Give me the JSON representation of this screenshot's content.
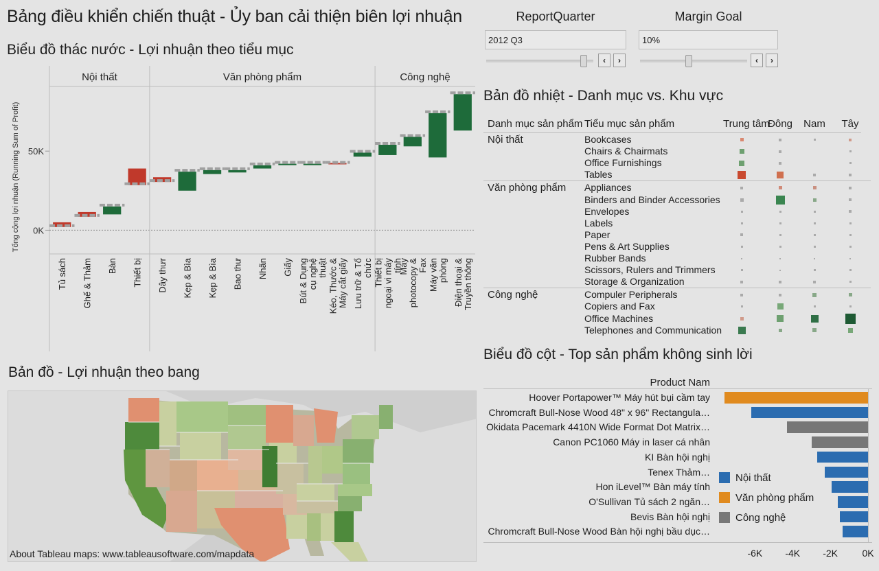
{
  "dashboard": {
    "title": "Bảng điều khiển chiến thuật - Ủy ban cải thiện biên lợi nhuận",
    "controls": [
      {
        "label": "ReportQuarter",
        "value": "2012 Q3",
        "slider_position": 0.95
      },
      {
        "label": "Margin Goal",
        "value": "10%",
        "slider_position": 0.4
      }
    ]
  },
  "waterfall": {
    "subtitle": "Biểu đồ thác nước - Lợi nhuận theo tiểu mục",
    "ylabel": "Tổng cộng lợi nhuận (Running Sum of Profit)",
    "y_ticks": [
      "0K",
      "50K"
    ],
    "groups": [
      "Nội thất",
      "Văn phòng phẩm",
      "Công nghệ"
    ]
  },
  "chart_data": [
    {
      "type": "bar",
      "subtype": "waterfall",
      "ylim": [
        -15000,
        90000
      ],
      "y_tick_values": [
        0,
        50000
      ],
      "groups": [
        {
          "name": "Nội thất",
          "categories": [
            "Tủ sách",
            "Ghế & Thảm",
            "Bàn",
            "Thiết bị"
          ]
        },
        {
          "name": "Văn phòng phẩm",
          "categories": [
            "Dây thưr",
            "Kẹp & Bìa",
            "Kẹp & Bìa",
            "Bao thư",
            "Nhãn",
            "Giấy",
            "Bút & Dụng cụ nghệ thuật",
            "Kéo, Thước & Máy cắt giấy",
            "Lưu trữ & Tổ chức"
          ]
        },
        {
          "name": "Công nghệ",
          "categories": [
            "Thiết bị ngoại vi máy tính",
            "Máy photocopy & Fax",
            "Máy văn phòng",
            "Điện thoại & Truyền thông"
          ]
        }
      ],
      "categories": [
        "Tủ sách",
        "Ghế & Thảm",
        "Bàn",
        "Thiết bị",
        "Dây thưr",
        "Kẹp & Bìa",
        "Kẹp & Bìa",
        "Bao thư",
        "Nhãn",
        "Giấy",
        "Bút & Dụng cụ nghệ thuật",
        "Kéo, Thước & Máy cắt giấy",
        "Lưu trữ & Tổ chức",
        "Thiết bị ngoại vi máy tính",
        "Máy photocopy & Fax",
        "Máy văn phòng",
        "Điện thoại & Truyền thông"
      ],
      "values": [
        -3000,
        -3000,
        5000,
        -10500,
        -3000,
        12000,
        2500,
        1500,
        2000,
        500,
        500,
        -500,
        2500,
        6500,
        6000,
        28000,
        23000
      ],
      "running_totals": [
        2000,
        8500,
        15000,
        28500,
        30500,
        37000,
        38000,
        38000,
        41000,
        42000,
        42000,
        42000,
        49000,
        54000,
        59000,
        74000,
        86000
      ],
      "colors": {
        "positive": "#1e6b3a",
        "negative": "#c0392b",
        "running_total": "#a0a0a0"
      }
    },
    {
      "type": "bar",
      "orientation": "horizontal",
      "title": "Biểu đồ cột - Top sản phẩm không sinh lời",
      "ylabel": "Product Nam",
      "categories": [
        "Hoover Portapower™ Máy hút bụi cầm tay",
        "Chromcraft Bull-Nose Wood 48\" x 96\" Rectangula…",
        "Okidata Pacemark 4410N Wide Format Dot Matrix…",
        "Canon PC1060 Máy in laser cá nhân",
        "KI Bàn hội nghị",
        "Tenex Thảm…",
        "Hon iLevel™ Bàn máy tính",
        "O'Sullivan Tủ sách 2 ngăn…",
        "Bevis Bàn hội nghị",
        "Chromcraft Bull-Nose Wood Bàn hội nghị bầu dục…"
      ],
      "values": [
        -7600,
        -6200,
        -4300,
        -3000,
        -2700,
        -2300,
        -1950,
        -1600,
        -1500,
        -1350
      ],
      "series_category": [
        "Văn phòng phẩm",
        "Nội thất",
        "Công nghệ",
        "Công nghệ",
        "Nội thất",
        "Nội thất",
        "Nội thất",
        "Nội thất",
        "Nội thất",
        "Nội thất"
      ],
      "xlim": [
        -7800,
        0
      ],
      "x_ticks": [
        "-6K",
        "-4K",
        "-2K",
        "0K"
      ],
      "x_tick_values": [
        -6000,
        -4000,
        -2000,
        0
      ],
      "legend": [
        {
          "name": "Nội thất",
          "color": "#2b6cb0"
        },
        {
          "name": "Văn phòng phẩm",
          "color": "#e08a1e"
        },
        {
          "name": "Công nghệ",
          "color": "#777777"
        }
      ],
      "legend_position": "bottom-right"
    }
  ],
  "heatmap": {
    "subtitle": "Bản đồ nhiệt - Danh mục vs. Khu vực",
    "col_headers": [
      "Danh mục sản phẩm",
      "Tiểu mục sản phẩm",
      "Trung tâm",
      "Đông",
      "Nam",
      "Tây"
    ],
    "groups": [
      {
        "category": "Nội thất",
        "rows": [
          {
            "name": "Bookcases",
            "cells": [
              {
                "s": 5,
                "c": "#d98870"
              },
              {
                "s": 4,
                "c": "#aaaaaa"
              },
              {
                "s": 3,
                "c": "#aaaaaa"
              },
              {
                "s": 4,
                "c": "#d09a8a"
              }
            ]
          },
          {
            "name": "Chairs & Chairmats",
            "cells": [
              {
                "s": 7,
                "c": "#6ea070"
              },
              {
                "s": 4,
                "c": "#aaaaaa"
              },
              {
                "s": 0,
                "c": "#aaaaaa"
              },
              {
                "s": 3,
                "c": "#aaaaaa"
              }
            ]
          },
          {
            "name": "Office Furnishings",
            "cells": [
              {
                "s": 8,
                "c": "#6ea070"
              },
              {
                "s": 4,
                "c": "#aaaaaa"
              },
              {
                "s": 0,
                "c": "#aaaaaa"
              },
              {
                "s": 3,
                "c": "#aaaaaa"
              }
            ]
          },
          {
            "name": "Tables",
            "cells": [
              {
                "s": 12,
                "c": "#c94a30"
              },
              {
                "s": 10,
                "c": "#d0704f"
              },
              {
                "s": 4,
                "c": "#aaaaaa"
              },
              {
                "s": 4,
                "c": "#aaaaaa"
              }
            ]
          }
        ]
      },
      {
        "category": "Văn phòng phẩm",
        "rows": [
          {
            "name": "Appliances",
            "cells": [
              {
                "s": 4,
                "c": "#aaaaaa"
              },
              {
                "s": 5,
                "c": "#d08a78"
              },
              {
                "s": 5,
                "c": "#c99080"
              },
              {
                "s": 4,
                "c": "#aaaaaa"
              }
            ]
          },
          {
            "name": "Binders and Binder Accessories",
            "cells": [
              {
                "s": 5,
                "c": "#aaaaaa"
              },
              {
                "s": 13,
                "c": "#3a8550"
              },
              {
                "s": 5,
                "c": "#88a888"
              },
              {
                "s": 4,
                "c": "#aaaaaa"
              }
            ]
          },
          {
            "name": "Envelopes",
            "cells": [
              {
                "s": 3,
                "c": "#aaaaaa"
              },
              {
                "s": 3,
                "c": "#aaaaaa"
              },
              {
                "s": 3,
                "c": "#aaaaaa"
              },
              {
                "s": 4,
                "c": "#aaaaaa"
              }
            ]
          },
          {
            "name": "Labels",
            "cells": [
              {
                "s": 3,
                "c": "#aaaaaa"
              },
              {
                "s": 3,
                "c": "#aaaaaa"
              },
              {
                "s": 3,
                "c": "#aaaaaa"
              },
              {
                "s": 3,
                "c": "#aaaaaa"
              }
            ]
          },
          {
            "name": "Paper",
            "cells": [
              {
                "s": 4,
                "c": "#aaaaaa"
              },
              {
                "s": 3,
                "c": "#aaaaaa"
              },
              {
                "s": 3,
                "c": "#aaaaaa"
              },
              {
                "s": 3,
                "c": "#aaaaaa"
              }
            ]
          },
          {
            "name": "Pens & Art Supplies",
            "cells": [
              {
                "s": 3,
                "c": "#aaaaaa"
              },
              {
                "s": 3,
                "c": "#aaaaaa"
              },
              {
                "s": 3,
                "c": "#aaaaaa"
              },
              {
                "s": 3,
                "c": "#aaaaaa"
              }
            ]
          },
          {
            "name": "Rubber Bands",
            "cells": [
              {
                "s": 2,
                "c": "#aaaaaa"
              },
              {
                "s": 2,
                "c": "#aaaaaa"
              },
              {
                "s": 2,
                "c": "#aaaaaa"
              },
              {
                "s": 2,
                "c": "#aaaaaa"
              }
            ]
          },
          {
            "name": "Scissors, Rulers and Trimmers",
            "cells": [
              {
                "s": 3,
                "c": "#aaaaaa"
              },
              {
                "s": 2,
                "c": "#aaaaaa"
              },
              {
                "s": 3,
                "c": "#aaaaaa"
              },
              {
                "s": 3,
                "c": "#aaaaaa"
              }
            ]
          },
          {
            "name": "Storage & Organization",
            "cells": [
              {
                "s": 4,
                "c": "#aaaaaa"
              },
              {
                "s": 4,
                "c": "#aaaaaa"
              },
              {
                "s": 4,
                "c": "#aaaaaa"
              },
              {
                "s": 3,
                "c": "#aaaaaa"
              }
            ]
          }
        ]
      },
      {
        "category": "Công nghệ",
        "rows": [
          {
            "name": "Compuler Peripherals",
            "cells": [
              {
                "s": 4,
                "c": "#aaaaaa"
              },
              {
                "s": 4,
                "c": "#aaaaaa"
              },
              {
                "s": 6,
                "c": "#88a888"
              },
              {
                "s": 5,
                "c": "#88a888"
              }
            ]
          },
          {
            "name": "Copiers and Fax",
            "cells": [
              {
                "s": 3,
                "c": "#aaaaaa"
              },
              {
                "s": 9,
                "c": "#78a878"
              },
              {
                "s": 3,
                "c": "#aaaaaa"
              },
              {
                "s": 3,
                "c": "#aaaaaa"
              }
            ]
          },
          {
            "name": "Office Machines",
            "cells": [
              {
                "s": 5,
                "c": "#d09a8a"
              },
              {
                "s": 10,
                "c": "#6ea070"
              },
              {
                "s": 11,
                "c": "#2f6f45"
              },
              {
                "s": 15,
                "c": "#1e5a34"
              }
            ]
          },
          {
            "name": "Telephones and Communication",
            "cells": [
              {
                "s": 11,
                "c": "#3a7a4f"
              },
              {
                "s": 5,
                "c": "#88a888"
              },
              {
                "s": 6,
                "c": "#88a888"
              },
              {
                "s": 7,
                "c": "#78a878"
              }
            ]
          }
        ]
      }
    ]
  },
  "map": {
    "subtitle": "Bản đồ - Lợi nhuận theo bang",
    "attribution": "About Tableau maps: www.tableausoftware.com/mapdata"
  },
  "barchart": {
    "subtitle": "Biểu đồ cột - Top sản phẩm không sinh lời",
    "header": "Product Nam"
  }
}
